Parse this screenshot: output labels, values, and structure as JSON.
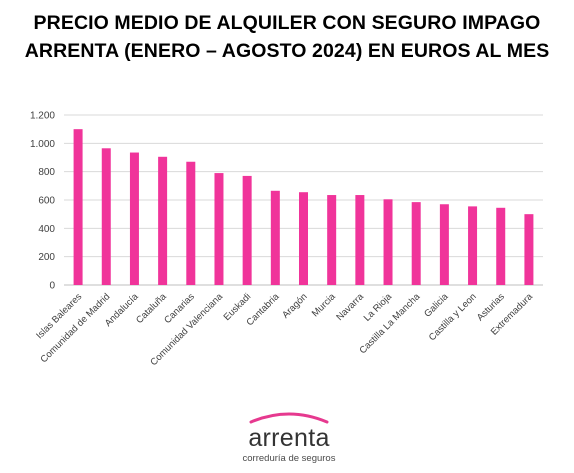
{
  "title": {
    "line1": "PRECIO MEDIO DE ALQUILER CON SEGURO IMPAGO",
    "line2": "ARRENTA (ENERO – AGOSTO 2024) EN EUROS AL MES"
  },
  "chart_data": {
    "type": "bar",
    "title": "PRECIO MEDIO DE ALQUILER CON SEGURO IMPAGO ARRENTA (ENERO – AGOSTO 2024) EN EUROS AL MES",
    "xlabel": "",
    "ylabel": "",
    "categories": [
      "Islas Baleares",
      "Comunidad de Madrid",
      "Andalucía",
      "Cataluña",
      "Canarias",
      "Comunidad Valenciana",
      "Euskadi",
      "Cantabria",
      "Aragón",
      "Murcia",
      "Navarra",
      "La Rioja",
      "Castilla La Mancha",
      "Galicia",
      "Castilla y Leon",
      "Asturias",
      "Extremadura"
    ],
    "values": [
      1100,
      965,
      935,
      905,
      870,
      790,
      770,
      665,
      655,
      635,
      635,
      605,
      585,
      570,
      555,
      545,
      500
    ],
    "ylim": [
      0,
      1200
    ],
    "yticks": [
      0,
      200,
      400,
      600,
      800,
      1000,
      1200
    ],
    "ytick_labels": [
      "0",
      "200",
      "400",
      "600",
      "800",
      "1.000",
      "1.200"
    ],
    "grid": true,
    "legend": "none",
    "bar_color": "#f0349a"
  },
  "logo": {
    "word": "arrenta",
    "tagline": "correduría de seguros",
    "arc_color": "#e6398f"
  }
}
